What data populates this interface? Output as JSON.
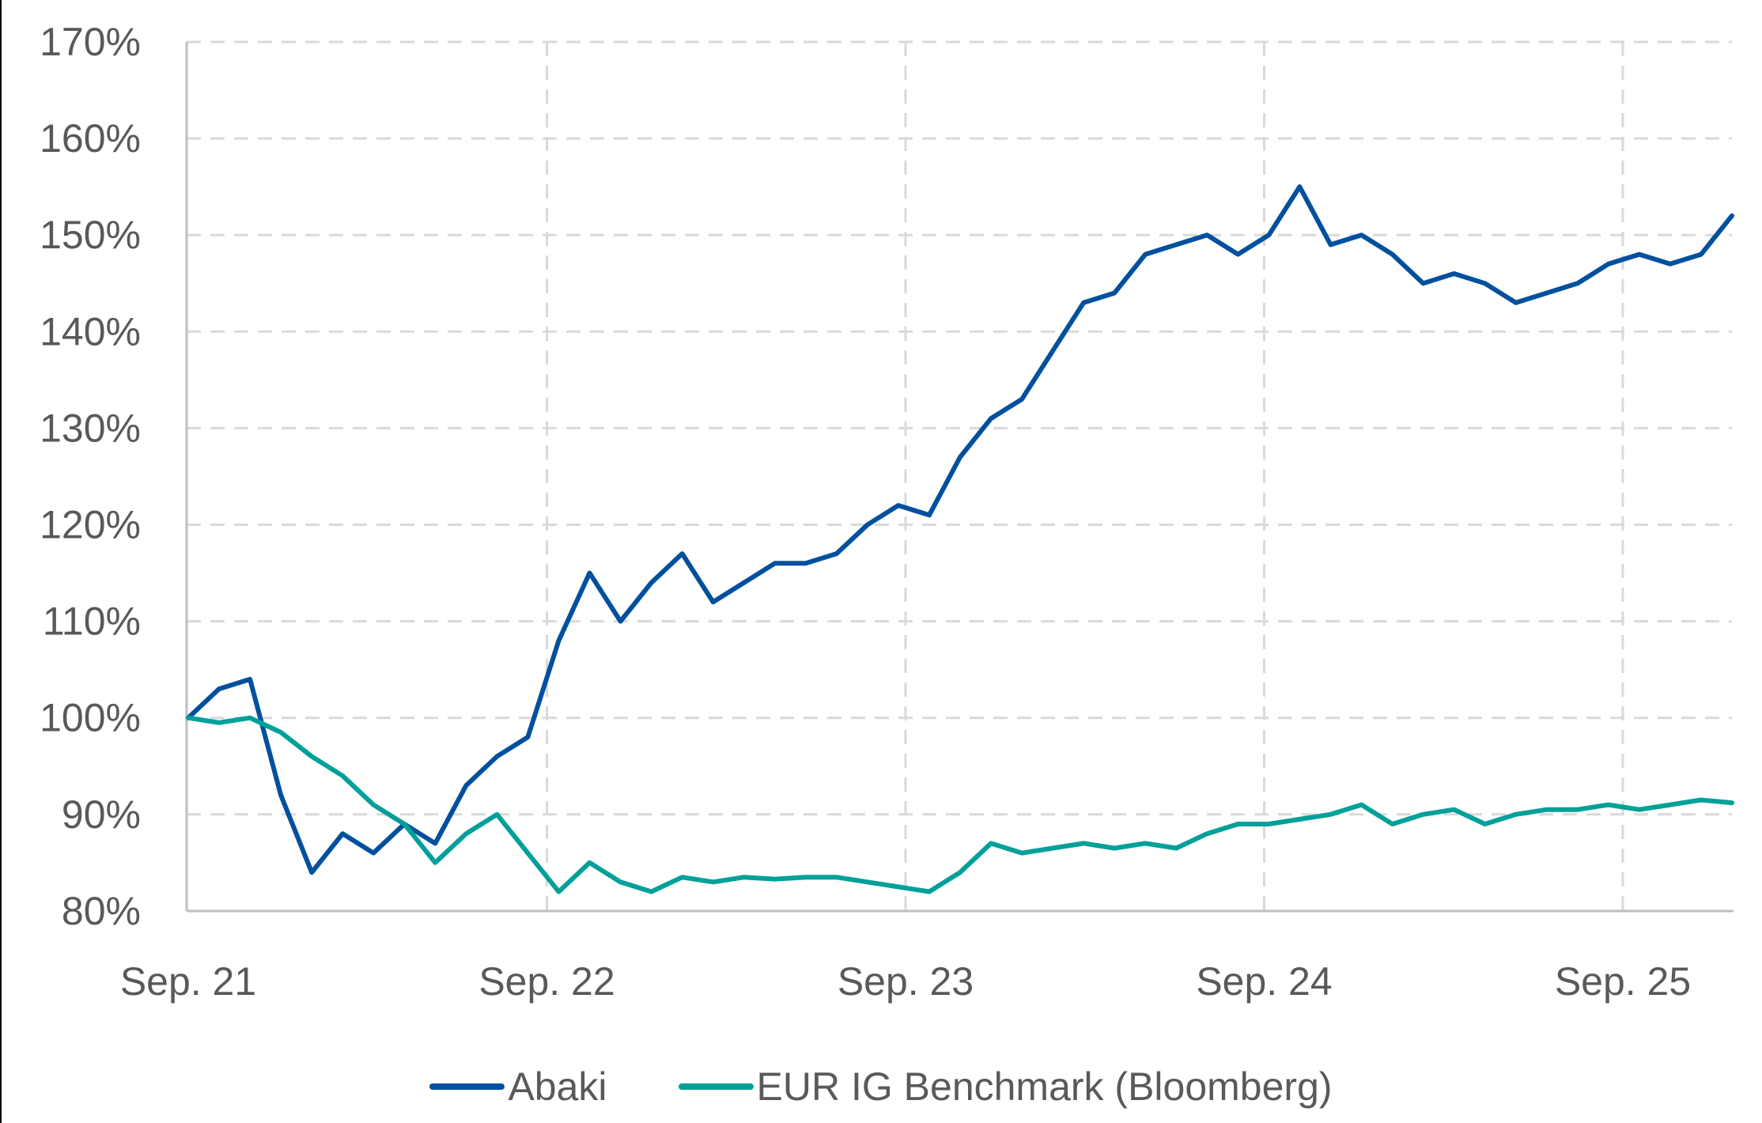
{
  "chart_data": {
    "type": "line",
    "title": "",
    "xlabel": "",
    "ylabel": "",
    "ylim": [
      80,
      170
    ],
    "yticks": [
      "80%",
      "90%",
      "100%",
      "110%",
      "120%",
      "130%",
      "140%",
      "150%",
      "160%",
      "170%"
    ],
    "xticks": [
      "Sep. 21",
      "Sep. 22",
      "Sep. 23",
      "Sep. 24",
      "Sep. 25"
    ],
    "grid": true,
    "legend_position": "bottom",
    "x": [
      "Sep-21",
      "Oct-21",
      "Nov-21",
      "Dec-21",
      "Jan-22",
      "Feb-22",
      "Mar-22",
      "Apr-22",
      "May-22",
      "Jun-22",
      "Jul-22",
      "Aug-22",
      "Sep-22",
      "Oct-22",
      "Nov-22",
      "Dec-22",
      "Jan-23",
      "Feb-23",
      "Mar-23",
      "Apr-23",
      "May-23",
      "Jun-23",
      "Jul-23",
      "Aug-23",
      "Sep-23",
      "Oct-23",
      "Nov-23",
      "Dec-23",
      "Jan-24",
      "Feb-24",
      "Mar-24",
      "Apr-24",
      "May-24",
      "Jun-24",
      "Jul-24",
      "Aug-24",
      "Sep-24",
      "Oct-24",
      "Nov-24",
      "Dec-24",
      "Jan-25",
      "Feb-25",
      "Mar-25",
      "Apr-25",
      "May-25",
      "Jun-25",
      "Jul-25",
      "Aug-25",
      "Sep-25",
      "Oct-25",
      "Nov-25"
    ],
    "series": [
      {
        "name": "Abaki",
        "color": "#00509E",
        "values": [
          100,
          103,
          104,
          92,
          84,
          88,
          86,
          89,
          87,
          93,
          96,
          98,
          108,
          115,
          110,
          114,
          117,
          112,
          114,
          116,
          116,
          117,
          120,
          122,
          121,
          127,
          131,
          133,
          138,
          143,
          144,
          148,
          149,
          150,
          148,
          150,
          155,
          149,
          150,
          148,
          145,
          146,
          145,
          143,
          144,
          145,
          147,
          148,
          147,
          148,
          152
        ]
      },
      {
        "name": "EUR IG Benchmark (Bloomberg)",
        "color": "#00A09A",
        "values": [
          100,
          99.5,
          100,
          98.5,
          96,
          94,
          91,
          89,
          85,
          88,
          90,
          86,
          82,
          85,
          83,
          82,
          83.5,
          83,
          83.5,
          83.3,
          83.5,
          83.5,
          83,
          82.5,
          82,
          84,
          87,
          86,
          86.5,
          87,
          86.5,
          87,
          86.5,
          88,
          89,
          89,
          89.5,
          90,
          91,
          89,
          90,
          90.5,
          89,
          90,
          90.5,
          90.5,
          91,
          90.5,
          91,
          91.5,
          91.2
        ]
      }
    ]
  },
  "legend": {
    "items": [
      {
        "label": "Abaki",
        "color": "#00509E"
      },
      {
        "label": "EUR IG Benchmark (Bloomberg)",
        "color": "#00A09A"
      }
    ]
  }
}
